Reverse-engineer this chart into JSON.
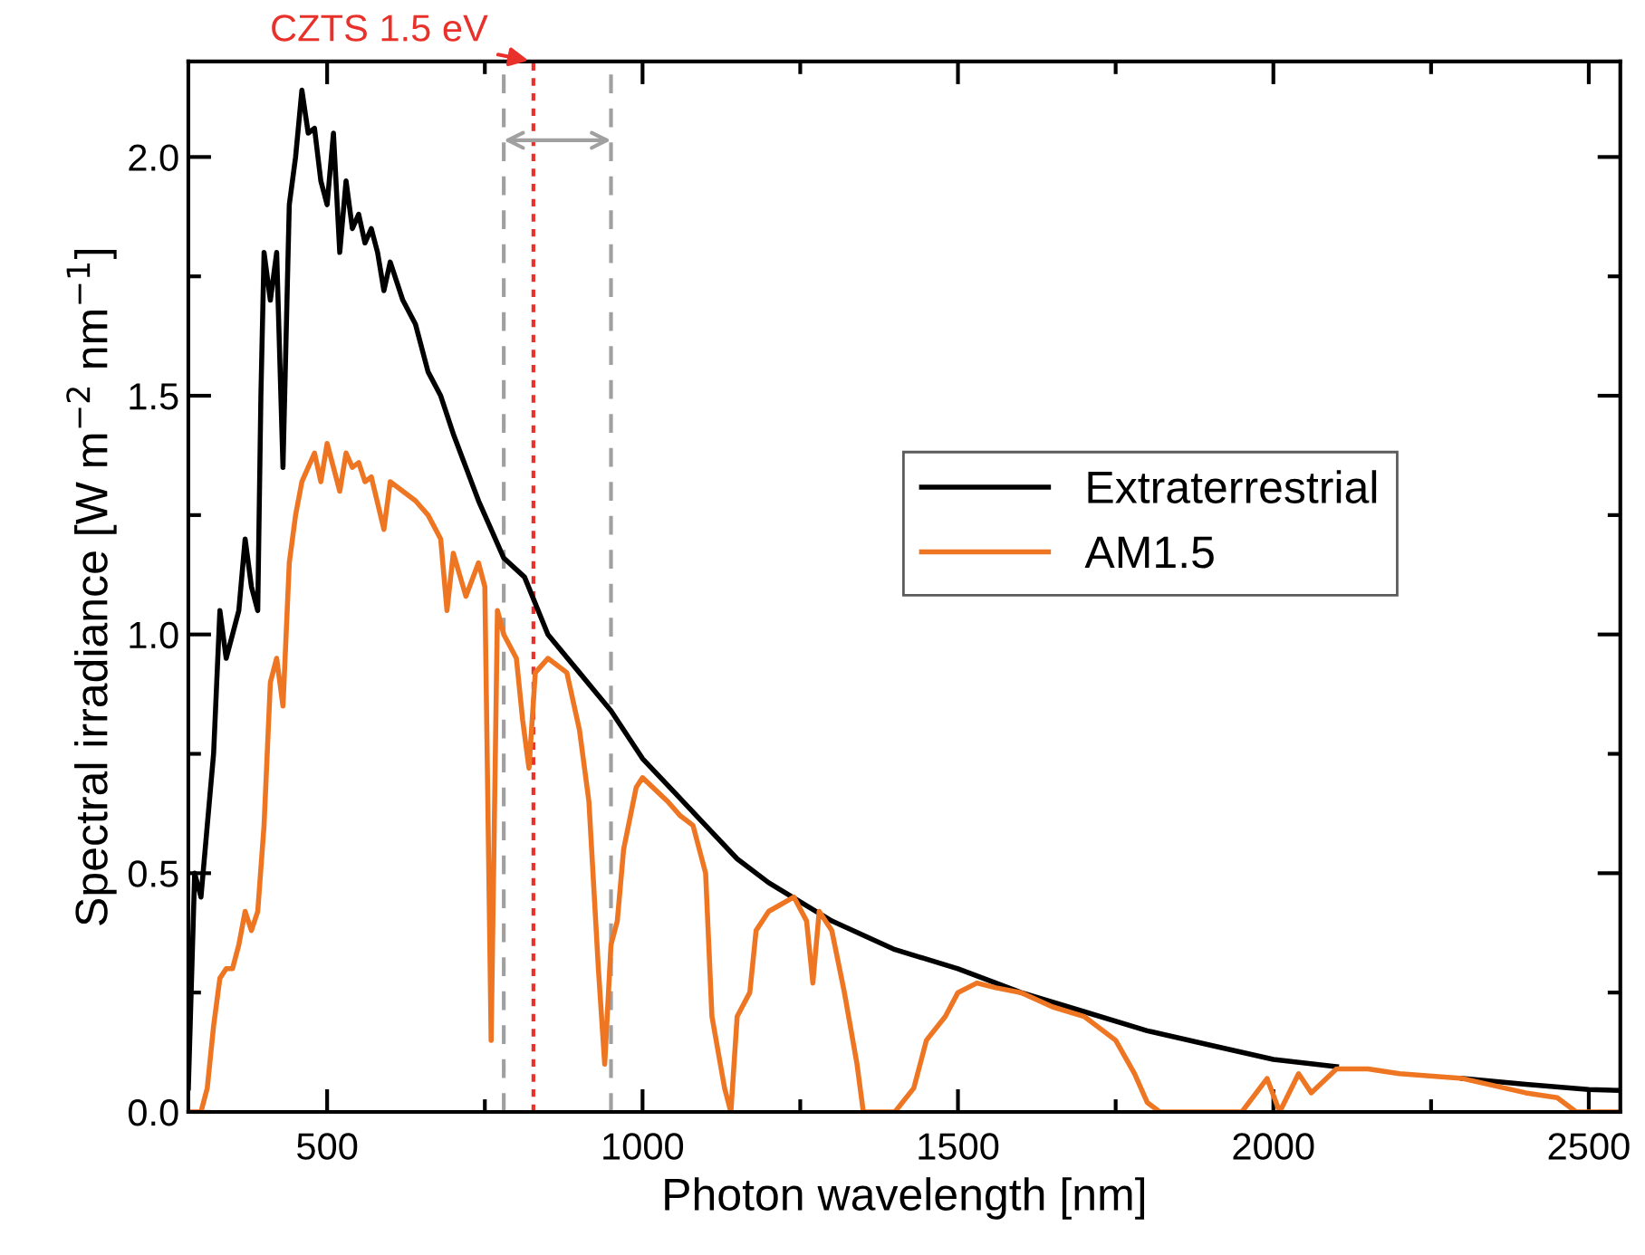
{
  "chart_data": {
    "type": "line",
    "xlabel": "Photon wavelength [nm]",
    "ylabel": "Spectral irradiance [W m$^{−2}$ nm$^{−1}$]",
    "xlim": [
      280,
      2550
    ],
    "ylim": [
      0,
      2.2
    ],
    "xticks": [
      500,
      {
        "value": 750,
        "label": null
      },
      1000,
      {
        "value": 1250,
        "label": null
      },
      1500,
      {
        "value": 1750,
        "label": null
      },
      2000,
      {
        "value": 2250,
        "label": null
      },
      2500
    ],
    "yticks": [
      {
        "value": 0,
        "label": "0.0"
      },
      {
        "value": 0.25,
        "label": null
      },
      0.5,
      {
        "value": 0.75,
        "label": null
      },
      {
        "value": 1,
        "label": "1.0"
      },
      {
        "value": 1.25,
        "label": null
      },
      1.5,
      {
        "value": 1.75,
        "label": null
      },
      {
        "value": 2,
        "label": "2.0"
      }
    ],
    "grid": false,
    "legend": "right",
    "marker": "none",
    "line_style": "solid",
    "series": [
      {
        "name": "Extraterrestrial",
        "color": "#000000",
        "x": [
          280,
          290,
          300,
          310,
          320,
          330,
          340,
          350,
          360,
          370,
          380,
          390,
          395,
          400,
          410,
          420,
          430,
          440,
          450,
          460,
          470,
          480,
          490,
          500,
          510,
          520,
          530,
          540,
          550,
          560,
          570,
          580,
          590,
          600,
          620,
          640,
          660,
          680,
          700,
          720,
          740,
          760,
          780,
          813,
          850,
          900,
          950,
          1000,
          1050,
          1100,
          1150,
          1200,
          1300,
          1400,
          1500,
          1600,
          1700,
          1800,
          1900,
          2000,
          2100,
          2200,
          2300,
          2400,
          2500,
          2550
        ],
        "values": [
          0.05,
          0.5,
          0.45,
          0.6,
          0.75,
          1.05,
          0.95,
          1.0,
          1.05,
          1.2,
          1.1,
          1.05,
          1.5,
          1.8,
          1.7,
          1.8,
          1.35,
          1.9,
          2.0,
          2.14,
          2.05,
          2.06,
          1.95,
          1.9,
          2.05,
          1.8,
          1.95,
          1.85,
          1.88,
          1.82,
          1.85,
          1.8,
          1.72,
          1.78,
          1.7,
          1.65,
          1.55,
          1.5,
          1.42,
          1.35,
          1.28,
          1.22,
          1.16,
          1.12,
          1.0,
          0.92,
          0.84,
          0.74,
          0.67,
          0.6,
          0.53,
          0.48,
          0.4,
          0.34,
          0.3,
          0.25,
          0.21,
          0.17,
          0.14,
          0.11,
          0.095,
          null,
          0.07,
          0.058,
          0.047,
          0.045
        ]
      },
      {
        "name": "AM1.5",
        "color": "#ee7623",
        "x": [
          280,
          300,
          310,
          320,
          330,
          340,
          350,
          360,
          370,
          380,
          390,
          400,
          410,
          420,
          430,
          440,
          450,
          460,
          470,
          480,
          490,
          500,
          510,
          520,
          530,
          540,
          550,
          560,
          570,
          590,
          600,
          620,
          640,
          660,
          680,
          690,
          700,
          720,
          740,
          750,
          760,
          770,
          780,
          800,
          810,
          820,
          830,
          850,
          880,
          900,
          915,
          930,
          940,
          950,
          960,
          970,
          990,
          1000,
          1040,
          1060,
          1080,
          1100,
          1110,
          1130,
          1140,
          1150,
          1170,
          1180,
          1200,
          1240,
          1260,
          1270,
          1280,
          1300,
          1320,
          1340,
          1350,
          1400,
          1430,
          1450,
          1480,
          1500,
          1530,
          1560,
          1600,
          1650,
          1700,
          1750,
          1780,
          1800,
          1820,
          1950,
          1990,
          2010,
          2040,
          2060,
          2100,
          2150,
          2200,
          2300,
          2400,
          2450,
          2480,
          2550
        ],
        "values": [
          0.0,
          0.0,
          0.05,
          0.18,
          0.28,
          0.3,
          0.3,
          0.35,
          0.42,
          0.38,
          0.42,
          0.6,
          0.9,
          0.95,
          0.85,
          1.15,
          1.25,
          1.32,
          1.35,
          1.38,
          1.32,
          1.4,
          1.35,
          1.3,
          1.38,
          1.35,
          1.36,
          1.32,
          1.33,
          1.22,
          1.32,
          1.3,
          1.28,
          1.25,
          1.2,
          1.05,
          1.17,
          1.08,
          1.15,
          1.1,
          0.15,
          1.05,
          1.0,
          0.95,
          0.82,
          0.72,
          0.92,
          0.95,
          0.92,
          0.8,
          0.65,
          0.3,
          0.1,
          0.35,
          0.4,
          0.55,
          0.68,
          0.7,
          0.65,
          0.62,
          0.6,
          0.5,
          0.2,
          0.05,
          0.0,
          0.2,
          0.25,
          0.38,
          0.42,
          0.45,
          0.4,
          0.27,
          0.42,
          0.38,
          0.25,
          0.1,
          0.0,
          0.0,
          0.05,
          0.15,
          0.2,
          0.25,
          0.27,
          0.26,
          0.25,
          0.22,
          0.2,
          0.15,
          0.08,
          0.02,
          0.0,
          0.0,
          0.07,
          0.0,
          0.08,
          0.04,
          0.09,
          0.09,
          0.08,
          0.07,
          0.04,
          0.03,
          0.0,
          0.0
        ]
      }
    ],
    "ref_lines": [
      {
        "axis": "x",
        "value": 780,
        "color": "#a0a0a0",
        "line_style": "dashed"
      },
      {
        "axis": "x",
        "value": 950,
        "color": "#a0a0a0",
        "line_style": "dashed"
      },
      {
        "axis": "x",
        "value": 827,
        "color": "#e8312a",
        "line_style": "dotted",
        "label": "CZTS 1.5 eV"
      }
    ]
  }
}
